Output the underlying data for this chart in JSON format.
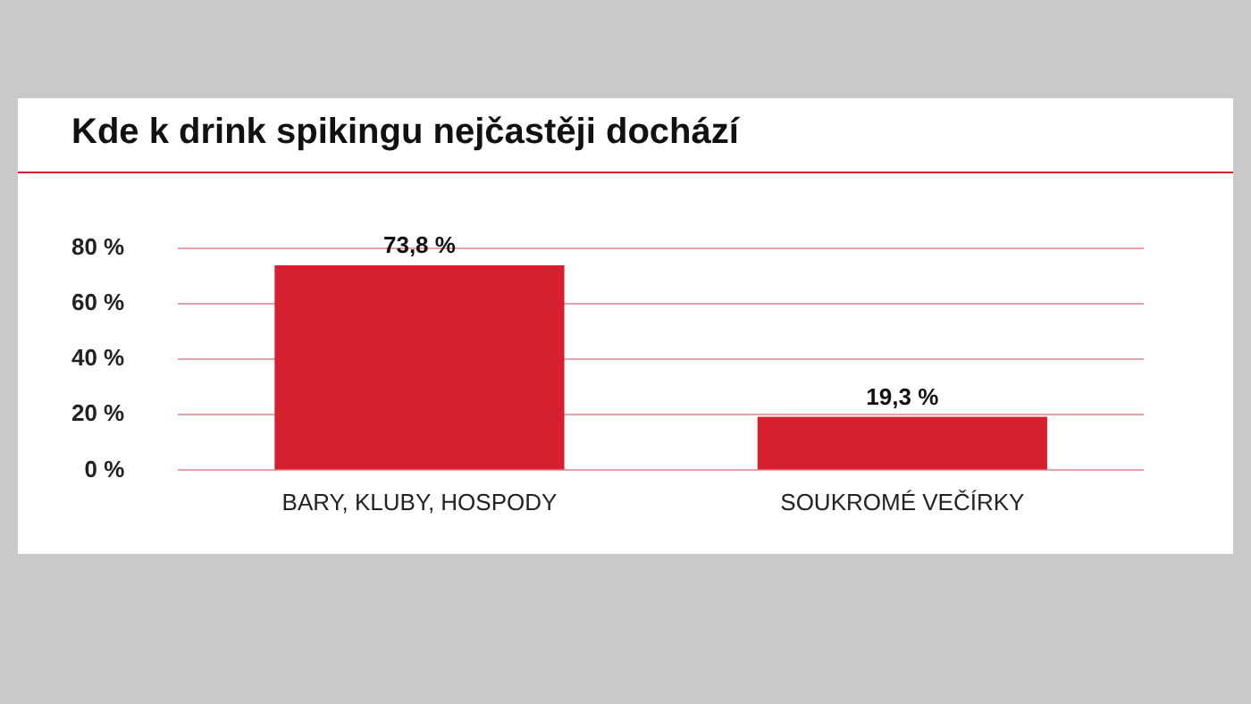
{
  "chart_data": {
    "type": "bar",
    "title": "Kde k drink spikingu nejčastěji dochází",
    "categories": [
      "BARY, KLUBY, HOSPODY",
      "SOUKROMÉ VEČÍRKY"
    ],
    "values": [
      73.8,
      19.3
    ],
    "color": "#d6202f",
    "value_labels": [
      "73,8 %",
      "19,3 %"
    ],
    "ylim": [
      0,
      80
    ],
    "yticks": [
      {
        "value": 0,
        "label": "0 %"
      },
      {
        "value": 20,
        "label": "20 %"
      },
      {
        "value": 40,
        "label": "40 %"
      },
      {
        "value": 60,
        "label": "60 %"
      },
      {
        "value": 80,
        "label": "80 %"
      }
    ],
    "grid": "y"
  }
}
